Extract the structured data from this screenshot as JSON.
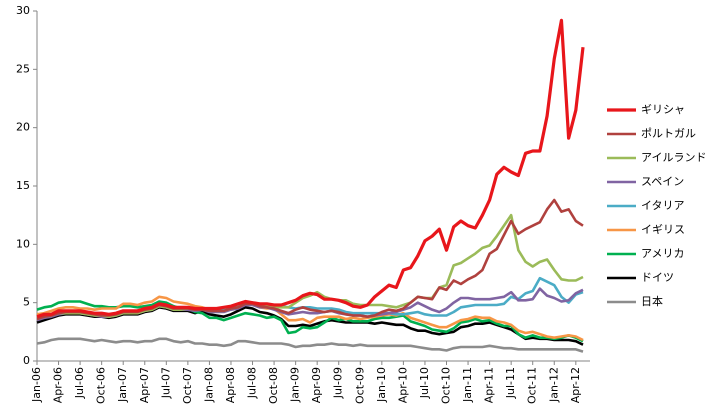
{
  "chart_data": {
    "type": "line",
    "categories": [
      "Jan-06",
      null,
      null,
      "Apr-06",
      null,
      null,
      "Jul-06",
      null,
      null,
      "Oct-06",
      null,
      null,
      "Jan-07",
      null,
      null,
      "Apr-07",
      null,
      null,
      "Jul-07",
      null,
      null,
      "Oct-07",
      null,
      null,
      "Jan-08",
      null,
      null,
      "Apr-08",
      null,
      null,
      "Jul-08",
      null,
      null,
      "Oct-08",
      null,
      null,
      "Jan-09",
      null,
      null,
      "Apr-09",
      null,
      null,
      "Jul-09",
      null,
      null,
      "Oct-09",
      null,
      null,
      "Jan-10",
      null,
      null,
      "Apr-10",
      null,
      null,
      "Jul-10",
      null,
      null,
      "Oct-10",
      null,
      null,
      "Jan-11",
      null,
      null,
      "Apr-11",
      null,
      null,
      "Jul-11",
      null,
      null,
      "Oct-11",
      null,
      null,
      "Jan-12",
      null,
      null,
      "Apr-12",
      null
    ],
    "ylim": [
      0,
      30
    ],
    "yticks": [
      0,
      5,
      10,
      15,
      20,
      25,
      30
    ],
    "grid": false,
    "series": [
      {
        "name": "ギリシャ",
        "color": "#e8161b",
        "values": [
          3.8,
          4.0,
          4.0,
          4.3,
          4.3,
          4.3,
          4.3,
          4.2,
          4.1,
          4.1,
          4.0,
          4.1,
          4.3,
          4.3,
          4.3,
          4.5,
          4.6,
          4.9,
          4.8,
          4.6,
          4.6,
          4.6,
          4.5,
          4.5,
          4.5,
          4.5,
          4.6,
          4.7,
          4.9,
          5.1,
          5.0,
          4.9,
          4.9,
          4.8,
          4.8,
          5.0,
          5.2,
          5.6,
          5.8,
          5.7,
          5.3,
          5.3,
          5.2,
          5.0,
          4.7,
          4.6,
          4.8,
          5.5,
          6.0,
          6.5,
          6.3,
          7.8,
          8.0,
          9.0,
          10.3,
          10.7,
          11.3,
          9.5,
          11.5,
          12.0,
          11.6,
          11.4,
          12.5,
          13.8,
          16.0,
          16.6,
          16.2,
          15.9,
          17.8,
          18.0,
          18.0,
          21.0,
          25.9,
          29.2,
          19.1,
          21.5,
          26.9
        ]
      },
      {
        "name": "ポルトガル",
        "color": "#b0413e",
        "values": [
          3.6,
          3.8,
          3.9,
          4.1,
          4.2,
          4.2,
          4.2,
          4.1,
          4.0,
          3.9,
          3.9,
          4.0,
          4.2,
          4.2,
          4.2,
          4.4,
          4.5,
          4.8,
          4.7,
          4.5,
          4.5,
          4.5,
          4.4,
          4.4,
          4.3,
          4.3,
          4.3,
          4.5,
          4.6,
          4.9,
          4.9,
          4.7,
          4.6,
          4.5,
          4.3,
          4.1,
          4.4,
          4.6,
          4.4,
          4.3,
          4.2,
          4.3,
          4.2,
          4.0,
          3.9,
          3.9,
          3.8,
          3.9,
          4.2,
          4.4,
          4.3,
          4.5,
          5.0,
          5.5,
          5.4,
          5.3,
          6.3,
          6.1,
          6.9,
          6.6,
          7.0,
          7.3,
          7.8,
          9.2,
          9.6,
          10.8,
          12.0,
          10.9,
          11.3,
          11.6,
          11.9,
          13.0,
          13.8,
          12.8,
          13.0,
          12.0,
          11.6
        ]
      },
      {
        "name": "アイルランド",
        "color": "#9bbb59",
        "values": [
          3.6,
          3.8,
          3.9,
          4.1,
          4.1,
          4.1,
          4.1,
          4.0,
          3.9,
          3.9,
          3.8,
          3.9,
          4.1,
          4.1,
          4.1,
          4.3,
          4.4,
          4.7,
          4.6,
          4.4,
          4.4,
          4.5,
          4.4,
          4.5,
          4.3,
          4.3,
          4.3,
          4.5,
          4.6,
          5.0,
          4.9,
          4.8,
          4.8,
          4.6,
          4.6,
          4.6,
          5.0,
          5.4,
          5.6,
          5.9,
          5.5,
          5.3,
          5.2,
          5.2,
          4.9,
          4.8,
          4.8,
          4.8,
          4.8,
          4.7,
          4.6,
          4.8,
          5.0,
          5.5,
          5.4,
          5.4,
          6.3,
          6.5,
          8.2,
          8.4,
          8.8,
          9.2,
          9.7,
          9.9,
          10.7,
          11.6,
          12.5,
          9.5,
          8.5,
          8.1,
          8.5,
          8.7,
          7.8,
          7.0,
          6.9,
          6.9,
          7.2
        ]
      },
      {
        "name": "スペイン",
        "color": "#8064a2",
        "values": [
          3.5,
          3.7,
          3.8,
          4.0,
          4.1,
          4.1,
          4.1,
          4.0,
          3.9,
          3.8,
          3.8,
          3.9,
          4.1,
          4.1,
          4.1,
          4.3,
          4.4,
          4.7,
          4.6,
          4.4,
          4.4,
          4.4,
          4.3,
          4.4,
          4.2,
          4.2,
          4.2,
          4.4,
          4.5,
          4.8,
          4.8,
          4.6,
          4.6,
          4.4,
          4.2,
          4.0,
          4.1,
          4.2,
          4.1,
          4.1,
          4.2,
          4.3,
          4.1,
          4.0,
          3.9,
          3.9,
          3.8,
          3.9,
          4.0,
          4.1,
          4.2,
          4.4,
          4.6,
          5.0,
          4.7,
          4.4,
          4.2,
          4.5,
          5.0,
          5.4,
          5.4,
          5.3,
          5.3,
          5.3,
          5.4,
          5.5,
          5.9,
          5.2,
          5.2,
          5.3,
          6.2,
          5.6,
          5.4,
          5.1,
          5.2,
          5.8,
          6.1
        ]
      },
      {
        "name": "イタリア",
        "color": "#4bacc6",
        "values": [
          3.6,
          3.8,
          3.9,
          4.1,
          4.2,
          4.2,
          4.2,
          4.1,
          4.0,
          3.9,
          3.9,
          4.0,
          4.2,
          4.2,
          4.2,
          4.4,
          4.5,
          4.8,
          4.7,
          4.5,
          4.5,
          4.5,
          4.4,
          4.5,
          4.4,
          4.4,
          4.4,
          4.6,
          4.7,
          5.0,
          5.0,
          4.8,
          4.8,
          4.7,
          4.7,
          4.6,
          4.5,
          4.6,
          4.6,
          4.5,
          4.5,
          4.5,
          4.4,
          4.2,
          4.1,
          4.1,
          4.1,
          4.1,
          4.1,
          4.1,
          4.0,
          4.0,
          4.1,
          4.2,
          4.0,
          3.9,
          3.9,
          3.9,
          4.2,
          4.6,
          4.7,
          4.8,
          4.8,
          4.8,
          4.8,
          4.9,
          5.5,
          5.3,
          5.8,
          6.0,
          7.1,
          6.8,
          6.5,
          5.5,
          5.0,
          5.7,
          5.9
        ]
      },
      {
        "name": "イギリス",
        "color": "#f79646",
        "values": [
          4.0,
          4.1,
          4.3,
          4.5,
          4.6,
          4.6,
          4.5,
          4.5,
          4.4,
          4.5,
          4.5,
          4.5,
          4.9,
          4.9,
          4.8,
          5.0,
          5.1,
          5.5,
          5.4,
          5.1,
          5.0,
          4.9,
          4.7,
          4.6,
          4.4,
          4.5,
          4.3,
          4.5,
          4.9,
          5.1,
          4.9,
          4.6,
          4.5,
          4.5,
          4.0,
          3.5,
          3.5,
          3.6,
          3.3,
          3.7,
          3.8,
          3.8,
          3.8,
          3.6,
          3.7,
          3.6,
          3.7,
          3.8,
          3.9,
          4.0,
          3.9,
          4.1,
          3.7,
          3.5,
          3.3,
          3.1,
          2.9,
          2.9,
          3.2,
          3.5,
          3.6,
          3.8,
          3.7,
          3.7,
          3.4,
          3.3,
          3.1,
          2.6,
          2.4,
          2.5,
          2.3,
          2.1,
          2.0,
          2.1,
          2.2,
          2.1,
          1.8
        ]
      },
      {
        "name": "アメリカ",
        "color": "#00b050",
        "values": [
          4.4,
          4.6,
          4.7,
          5.0,
          5.1,
          5.1,
          5.1,
          4.9,
          4.7,
          4.7,
          4.6,
          4.6,
          4.7,
          4.7,
          4.6,
          4.7,
          4.8,
          5.1,
          5.0,
          4.7,
          4.5,
          4.5,
          4.2,
          4.1,
          3.7,
          3.7,
          3.5,
          3.7,
          3.9,
          4.1,
          4.0,
          3.9,
          3.7,
          3.8,
          3.5,
          2.4,
          2.5,
          2.9,
          2.8,
          2.9,
          3.3,
          3.7,
          3.5,
          3.6,
          3.4,
          3.4,
          3.4,
          3.6,
          3.7,
          3.7,
          3.8,
          3.9,
          3.4,
          3.2,
          3.0,
          2.7,
          2.6,
          2.5,
          2.8,
          3.3,
          3.4,
          3.6,
          3.4,
          3.5,
          3.2,
          3.0,
          3.0,
          2.3,
          2.0,
          2.2,
          2.0,
          2.0,
          1.9,
          2.0,
          2.2,
          2.0,
          1.7
        ]
      },
      {
        "name": "ドイツ",
        "color": "#000000",
        "values": [
          3.3,
          3.5,
          3.7,
          3.9,
          4.0,
          4.0,
          4.0,
          3.9,
          3.8,
          3.8,
          3.7,
          3.8,
          4.0,
          4.0,
          4.0,
          4.2,
          4.3,
          4.6,
          4.5,
          4.3,
          4.3,
          4.3,
          4.1,
          4.3,
          4.0,
          3.9,
          3.8,
          4.0,
          4.3,
          4.6,
          4.5,
          4.2,
          4.1,
          3.9,
          3.6,
          3.0,
          3.0,
          3.1,
          3.0,
          3.2,
          3.4,
          3.5,
          3.4,
          3.3,
          3.3,
          3.3,
          3.3,
          3.2,
          3.3,
          3.2,
          3.1,
          3.1,
          2.8,
          2.6,
          2.6,
          2.4,
          2.3,
          2.4,
          2.5,
          2.9,
          3.0,
          3.2,
          3.2,
          3.3,
          3.1,
          2.9,
          2.7,
          2.3,
          1.9,
          2.0,
          1.9,
          1.9,
          1.8,
          1.8,
          1.8,
          1.7,
          1.4
        ]
      },
      {
        "name": "日本",
        "color": "#8c8c8c",
        "values": [
          1.5,
          1.6,
          1.8,
          1.9,
          1.9,
          1.9,
          1.9,
          1.8,
          1.7,
          1.8,
          1.7,
          1.6,
          1.7,
          1.7,
          1.6,
          1.7,
          1.7,
          1.9,
          1.9,
          1.7,
          1.6,
          1.7,
          1.5,
          1.5,
          1.4,
          1.4,
          1.3,
          1.4,
          1.7,
          1.7,
          1.6,
          1.5,
          1.5,
          1.5,
          1.5,
          1.4,
          1.2,
          1.3,
          1.3,
          1.4,
          1.4,
          1.5,
          1.4,
          1.4,
          1.3,
          1.4,
          1.3,
          1.3,
          1.3,
          1.3,
          1.3,
          1.3,
          1.3,
          1.2,
          1.1,
          1.0,
          1.0,
          0.9,
          1.1,
          1.2,
          1.2,
          1.2,
          1.2,
          1.3,
          1.2,
          1.1,
          1.1,
          1.0,
          1.0,
          1.0,
          1.0,
          1.0,
          1.0,
          1.0,
          1.0,
          1.0,
          0.8
        ]
      }
    ]
  }
}
